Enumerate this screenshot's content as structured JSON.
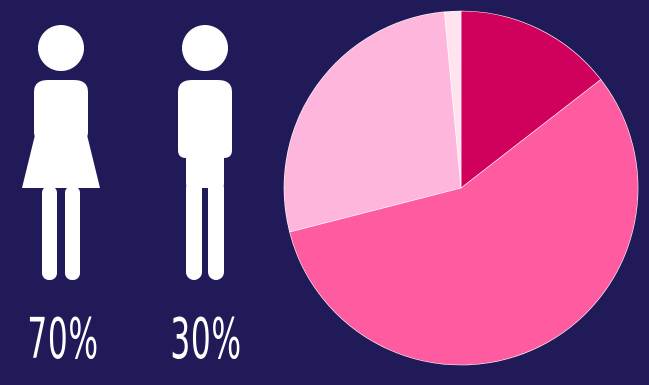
{
  "gender": {
    "female": {
      "icon": "woman-icon",
      "percent_label": "70%",
      "value": 70
    },
    "male": {
      "icon": "man-icon",
      "percent_label": "30%",
      "value": 30
    }
  },
  "chart_data": {
    "type": "pie",
    "categories": [
      "",
      "",
      "",
      ""
    ],
    "values": [
      14.5,
      56.5,
      27.5,
      1.5
    ],
    "colors": [
      "#d0005d",
      "#ff5ba0",
      "#ffb6dc",
      "#ffe4f0"
    ],
    "start_angle_deg": 0,
    "title": ""
  },
  "colors": {
    "background": "#201a58",
    "icon": "#ffffff",
    "text": "#ffffff"
  }
}
